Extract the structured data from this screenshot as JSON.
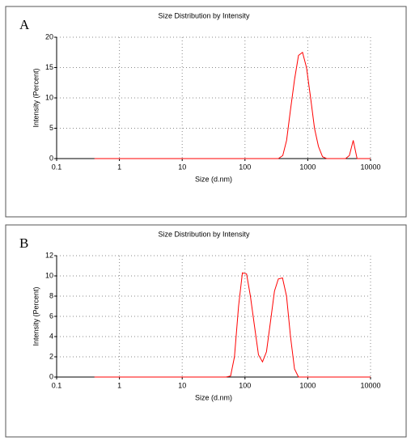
{
  "chart_data": [
    {
      "type": "line",
      "panel_label": "A",
      "title": "Size Distribution by Intensity",
      "xlabel": "Size (d.nm)",
      "ylabel": "Intensity (Percent)",
      "log_x": true,
      "grid": true,
      "color": "#ff0000",
      "x": [
        0.4,
        1,
        10,
        100,
        340,
        400,
        460,
        530,
        615,
        712,
        825,
        955,
        1110,
        1280,
        1480,
        1720,
        2000,
        3000,
        4000,
        4600,
        5300,
        6100,
        7000,
        10000
      ],
      "values": [
        0,
        0,
        0,
        0,
        0,
        0.5,
        3,
        8,
        13,
        17,
        17.5,
        15,
        10,
        5,
        2,
        0.3,
        0,
        0,
        0,
        0.5,
        3,
        0,
        0,
        0
      ],
      "xlim": [
        0.1,
        10000
      ],
      "xticks": [
        0.1,
        1,
        10,
        100,
        1000,
        10000
      ],
      "ylim": [
        0,
        20
      ],
      "yticks": [
        0,
        5,
        10,
        15,
        20
      ]
    },
    {
      "type": "line",
      "panel_label": "B",
      "title": "Size Distribution by Intensity",
      "xlabel": "Size (d.nm)",
      "ylabel": "Intensity (Percent)",
      "log_x": true,
      "grid": true,
      "color": "#ff0000",
      "x": [
        0.4,
        1,
        10,
        50,
        59,
        68,
        79,
        91,
        106,
        122,
        142,
        164,
        190,
        220,
        255,
        295,
        340,
        396,
        459,
        531,
        615,
        712,
        1000,
        10000
      ],
      "values": [
        0,
        0,
        0,
        0,
        0.1,
        2,
        7,
        10.3,
        10.2,
        8,
        5,
        2.2,
        1.5,
        2.5,
        5.5,
        8.5,
        9.7,
        9.8,
        8,
        4,
        0.8,
        0,
        0,
        0
      ],
      "xlim": [
        0.1,
        10000
      ],
      "xticks": [
        0.1,
        1,
        10,
        100,
        1000,
        10000
      ],
      "ylim": [
        0,
        12
      ],
      "yticks": [
        0,
        2,
        4,
        6,
        8,
        10,
        12
      ]
    }
  ]
}
